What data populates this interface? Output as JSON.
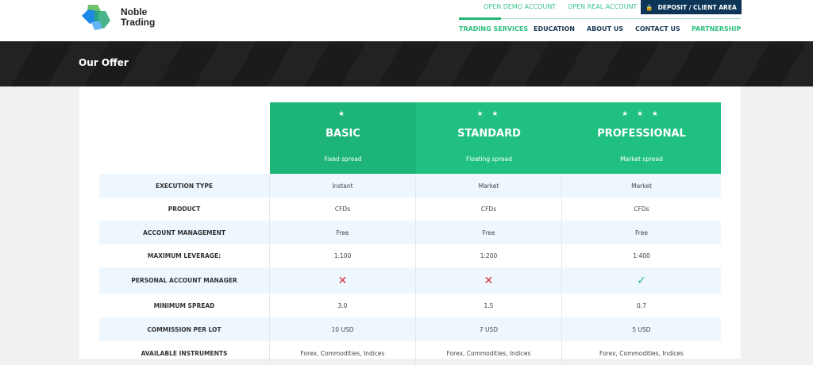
{
  "logo": {
    "line1": "Noble",
    "line2": "Trading"
  },
  "header": {
    "demo": "OPEN DEMO ACCOUNT",
    "real": "OPEN REAL ACCOUNT",
    "deposit": "DEPOSIT / CLIENT AREA"
  },
  "nav": [
    "TRADING SERVICES",
    "EDUCATION",
    "ABOUT US",
    "CONTACT US",
    "PARTNERSHIP"
  ],
  "page_title": "Our Offer",
  "plans": [
    {
      "stars": "★",
      "name": "BASIC",
      "spread": "Fixed spread",
      "color": "#1cb477"
    },
    {
      "stars": "★ ★",
      "name": "STANDARD",
      "spread": "Floating spread",
      "color": "#20c180"
    },
    {
      "stars": "★ ★ ★",
      "name": "PROFESSIONAL",
      "spread": "Market spread",
      "color": "#20c180"
    }
  ],
  "rows": [
    {
      "label": "EXECUTION TYPE",
      "values": [
        "Instant",
        "Market",
        "Market"
      ]
    },
    {
      "label": "PRODUCT",
      "values": [
        "CFDs",
        "CFDs",
        "CFDs"
      ]
    },
    {
      "label": "ACCOUNT MANAGEMENT",
      "values": [
        "Free",
        "Free",
        "Free"
      ]
    },
    {
      "label": "MAXIMUM LEVERAGE:",
      "values": [
        "1:100",
        "1:200",
        "1:400"
      ]
    },
    {
      "label": "PERSONAL ACCOUNT MANAGER",
      "values": [
        "✕",
        "✕",
        "✓"
      ]
    },
    {
      "label": "MINIMUM SPREAD",
      "values": [
        "3.0",
        "1.5",
        "0.7"
      ]
    },
    {
      "label": "COMMISSION PER LOT",
      "values": [
        "10 USD",
        "7 USD",
        "5 USD"
      ]
    },
    {
      "label": "AVAILABLE INSTRUMENTS",
      "values": [
        "Forex, Commodities, Indices",
        "Forex, Commodities, Indices",
        "Forex, Commodities, Indices"
      ]
    }
  ]
}
